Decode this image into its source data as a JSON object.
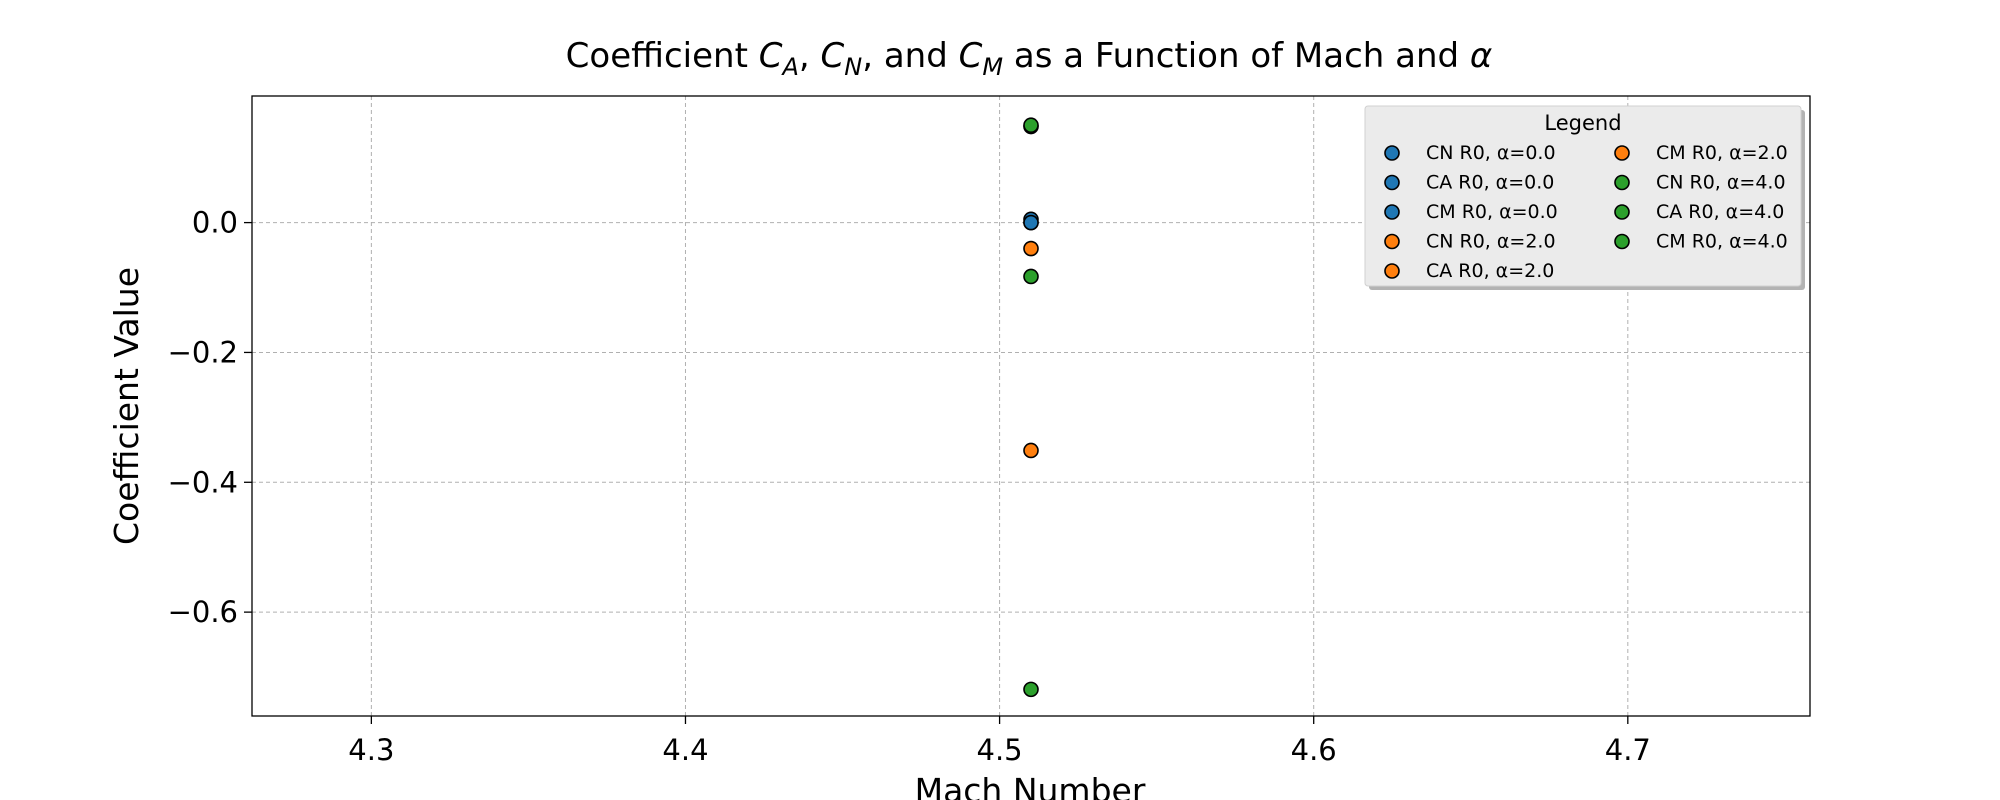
{
  "chart_data": {
    "type": "scatter",
    "title_parts": [
      {
        "text": "Coefficient ",
        "style": "normal"
      },
      {
        "text": "C",
        "style": "italic"
      },
      {
        "text": "A",
        "style": "italic-sub"
      },
      {
        "text": ", ",
        "style": "normal"
      },
      {
        "text": "C",
        "style": "italic"
      },
      {
        "text": "N",
        "style": "italic-sub"
      },
      {
        "text": ", and ",
        "style": "normal"
      },
      {
        "text": "C",
        "style": "italic"
      },
      {
        "text": "M",
        "style": "italic-sub"
      },
      {
        "text": " as a Function of Mach and ",
        "style": "normal"
      },
      {
        "text": "α",
        "style": "italic"
      }
    ],
    "xlabel": "Mach Number",
    "ylabel": "Coefficient Value",
    "xlim": [
      4.262,
      4.758
    ],
    "ylim": [
      -0.76,
      0.195
    ],
    "xticks": [
      4.3,
      4.4,
      4.5,
      4.6,
      4.7
    ],
    "xtick_labels": [
      "4.3",
      "4.4",
      "4.5",
      "4.6",
      "4.7"
    ],
    "yticks": [
      0.0,
      -0.2,
      -0.4,
      -0.6
    ],
    "ytick_labels": [
      "0.0",
      "−0.2",
      "−0.4",
      "−0.6"
    ],
    "grid": true,
    "legend_title": "Legend",
    "legend_position": "top-right",
    "legend_columns": 2,
    "series": [
      {
        "name": "CN R0, α=0.0",
        "color": "#1f77b4",
        "x": [
          4.51
        ],
        "y": [
          0.0
        ]
      },
      {
        "name": "CA R0, α=0.0",
        "color": "#1f77b4",
        "x": [
          4.51
        ],
        "y": [
          0.005
        ]
      },
      {
        "name": "CM R0, α=0.0",
        "color": "#1f77b4",
        "x": [
          4.51
        ],
        "y": [
          0.0
        ]
      },
      {
        "name": "CN R0, α=2.0",
        "color": "#ff7f0e",
        "x": [
          4.51
        ],
        "y": [
          -0.04
        ]
      },
      {
        "name": "CA R0, α=2.0",
        "color": "#ff7f0e",
        "x": [
          4.51
        ],
        "y": [
          0.148
        ]
      },
      {
        "name": "CM R0, α=2.0",
        "color": "#ff7f0e",
        "x": [
          4.51
        ],
        "y": [
          -0.351
        ]
      },
      {
        "name": "CN R0, α=4.0",
        "color": "#2ca02c",
        "x": [
          4.51
        ],
        "y": [
          -0.083
        ]
      },
      {
        "name": "CA R0, α=4.0",
        "color": "#2ca02c",
        "x": [
          4.51
        ],
        "y": [
          0.15
        ]
      },
      {
        "name": "CM R0, α=4.0",
        "color": "#2ca02c",
        "x": [
          4.51
        ],
        "y": [
          -0.719
        ]
      }
    ]
  }
}
